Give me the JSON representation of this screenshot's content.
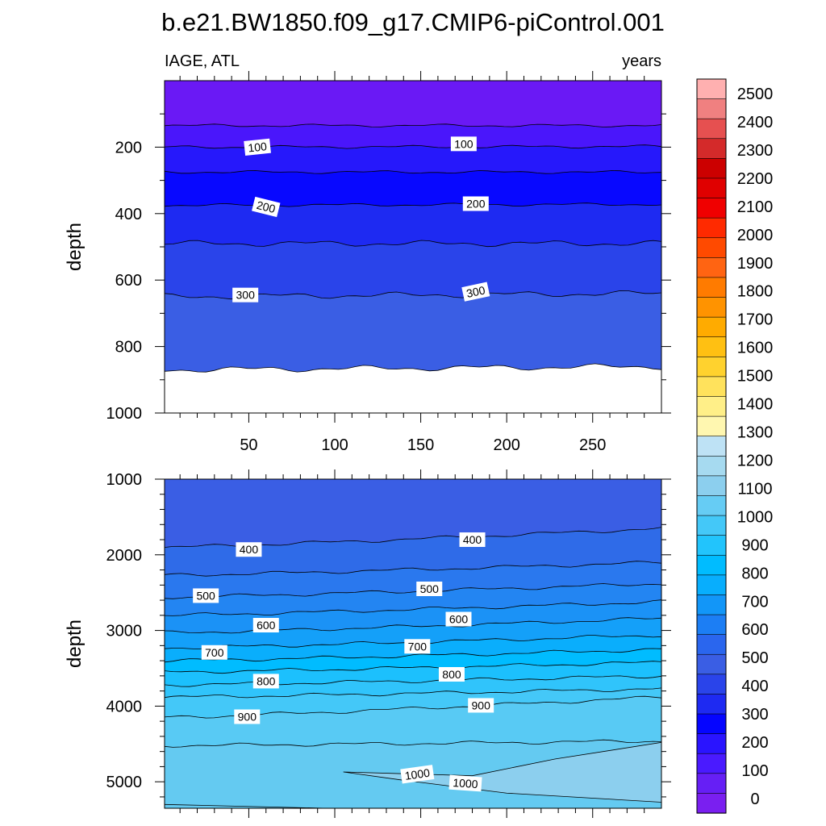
{
  "title": "b.e21.BW1850.f09_g17.CMIP6-piControl.001",
  "left_string": "IAGE, ATL",
  "right_string": "years",
  "chart_data": {
    "type": "contour",
    "variable": "IAGE",
    "region": "ATL",
    "units": "years",
    "x_ticks": [
      50,
      100,
      150,
      200,
      250
    ],
    "xlim": [
      1,
      290
    ],
    "colorbar": {
      "levels": [
        0,
        100,
        200,
        300,
        400,
        500,
        600,
        700,
        800,
        900,
        1000,
        1100,
        1200,
        1300,
        1400,
        1500,
        1600,
        1700,
        1800,
        1900,
        2000,
        2100,
        2200,
        2300,
        2400,
        2500
      ],
      "colors": [
        "#7a1ff0",
        "#661ff5",
        "#4a1aff",
        "#2a14ff",
        "#0505ff",
        "#1e2af2",
        "#2a44ea",
        "#3a5ee4",
        "#2a66ee",
        "#1c7ef4",
        "#1296f8",
        "#08aefd",
        "#00bcff",
        "#22c4fc",
        "#44c8f8",
        "#66ccf4",
        "#8ccfee",
        "#a6daf0",
        "#bee2f5",
        "#fff7b0",
        "#ffef88",
        "#ffe25c",
        "#ffd22e",
        "#ffc012",
        "#ffab00",
        "#ff9300",
        "#ff7b00",
        "#ff6412",
        "#ff4a00",
        "#ff2a00",
        "#f00000",
        "#e00000",
        "#cc0000",
        "#d42a2a",
        "#e65050",
        "#f08080",
        "#ffb0b0"
      ],
      "labels": [
        "0",
        "100",
        "200",
        "300",
        "400",
        "500",
        "600",
        "700",
        "800",
        "900",
        "1000",
        "1100",
        "1200",
        "1300",
        "1400",
        "1500",
        "1600",
        "1700",
        "1800",
        "1900",
        "2000",
        "2100",
        "2200",
        "2300",
        "2400",
        "2500"
      ]
    },
    "panels": [
      {
        "name": "upper",
        "ylabel": "depth",
        "ylim": [
          0,
          1000
        ],
        "y_ticks": [
          200,
          400,
          600,
          800,
          1000
        ],
        "band_colors": [
          "#6a19f5",
          "#4a16fb",
          "#2618fb",
          "#0808ff",
          "#1e2af2",
          "#2a44ea",
          "#3a5ee4"
        ],
        "contours": [
          {
            "y": [
              135,
              135
            ]
          },
          {
            "y": [
              200,
              198
            ],
            "label": "100",
            "label_x": [
              55,
              175
            ],
            "label_y": 195
          },
          {
            "y": [
              275,
              275
            ]
          },
          {
            "y": [
              375,
              372
            ],
            "label": "200",
            "label_x": [
              60,
              182
            ],
            "label_y": 375
          },
          {
            "y": [
              490,
              490
            ]
          },
          {
            "y": [
              650,
              640
            ],
            "label": "300",
            "label_x": [
              48,
              182
            ],
            "label_y": 640
          },
          {
            "y": [
              870,
              860
            ]
          }
        ]
      },
      {
        "name": "lower",
        "ylabel": "depth",
        "ylim": [
          1000,
          5350
        ],
        "y_ticks": [
          1000,
          2000,
          3000,
          4000,
          5000
        ],
        "contour_labels": [
          "400",
          "500",
          "600",
          "700",
          "800",
          "900",
          "1000"
        ]
      }
    ]
  }
}
